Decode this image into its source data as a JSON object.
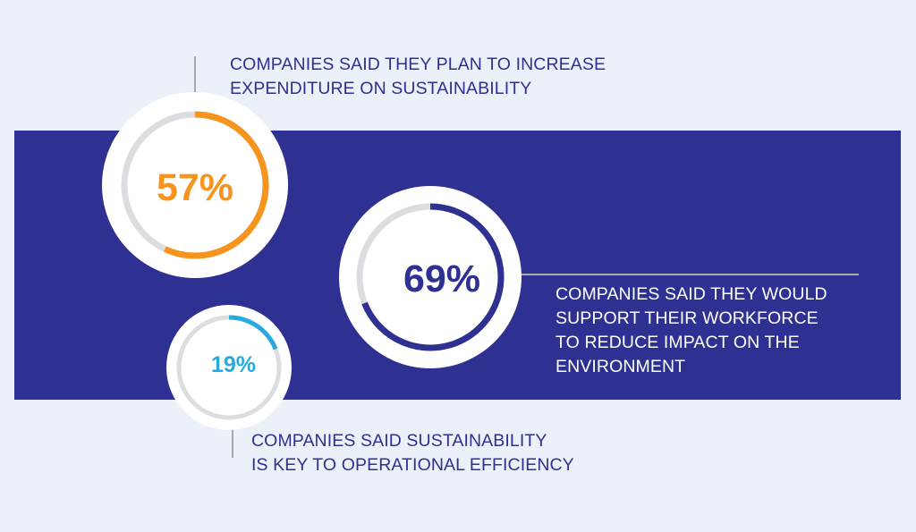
{
  "chart_data": {
    "type": "radial-progress",
    "items": [
      {
        "id": "g57",
        "value": 57,
        "value_label": "57%",
        "caption": "COMPANIES SAID THEY PLAN TO INCREASE\nEXPENDITURE ON SUSTAINABILITY",
        "color": "#f7941d"
      },
      {
        "id": "g69",
        "value": 69,
        "value_label": "69%",
        "caption": "COMPANIES SAID THEY WOULD\nSUPPORT THEIR WORKFORCE\nTO REDUCE IMPACT ON THE\nENVIRONMENT",
        "color": "#2e3192"
      },
      {
        "id": "g19",
        "value": 19,
        "value_label": "19%",
        "caption": "COMPANIES SAID SUSTAINABILITY\nIS KEY TO OPERATIONAL EFFICIENCY",
        "color": "#27aae1"
      }
    ]
  },
  "colors": {
    "background": "#ecf0f9",
    "band": "#2e3192",
    "track": "#dcdde1",
    "leader_line": "#a7a9ac",
    "caption_dark": "#2e3192",
    "caption_light": "#ffffff"
  }
}
